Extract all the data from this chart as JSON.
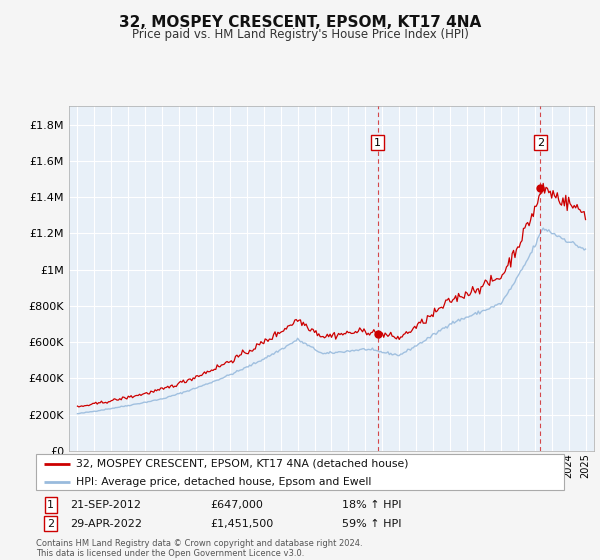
{
  "title": "32, MOSPEY CRESCENT, EPSOM, KT17 4NA",
  "subtitle": "Price paid vs. HM Land Registry's House Price Index (HPI)",
  "ylim": [
    0,
    1900000
  ],
  "yticks": [
    0,
    200000,
    400000,
    600000,
    800000,
    1000000,
    1200000,
    1400000,
    1600000,
    1800000
  ],
  "ytick_labels": [
    "£0",
    "£200K",
    "£400K",
    "£600K",
    "£800K",
    "£1M",
    "£1.2M",
    "£1.4M",
    "£1.6M",
    "£1.8M"
  ],
  "xlim_start": 1994.5,
  "xlim_end": 2025.5,
  "fig_bg_color": "#f5f5f5",
  "plot_bg_color": "#e8f0f8",
  "grid_color": "#ffffff",
  "red_line_color": "#cc0000",
  "blue_line_color": "#99bbdd",
  "marker1_x": 2012.72,
  "marker1_y": 647000,
  "marker2_x": 2022.33,
  "marker2_y": 1451500,
  "vline_color": "#cc0000",
  "sale1_date": "21-SEP-2012",
  "sale1_price": "£647,000",
  "sale1_hpi": "18% ↑ HPI",
  "sale2_date": "29-APR-2022",
  "sale2_price": "£1,451,500",
  "sale2_hpi": "59% ↑ HPI",
  "legend_line1": "32, MOSPEY CRESCENT, EPSOM, KT17 4NA (detached house)",
  "legend_line2": "HPI: Average price, detached house, Epsom and Ewell",
  "footer": "Contains HM Land Registry data © Crown copyright and database right 2024.\nThis data is licensed under the Open Government Licence v3.0."
}
